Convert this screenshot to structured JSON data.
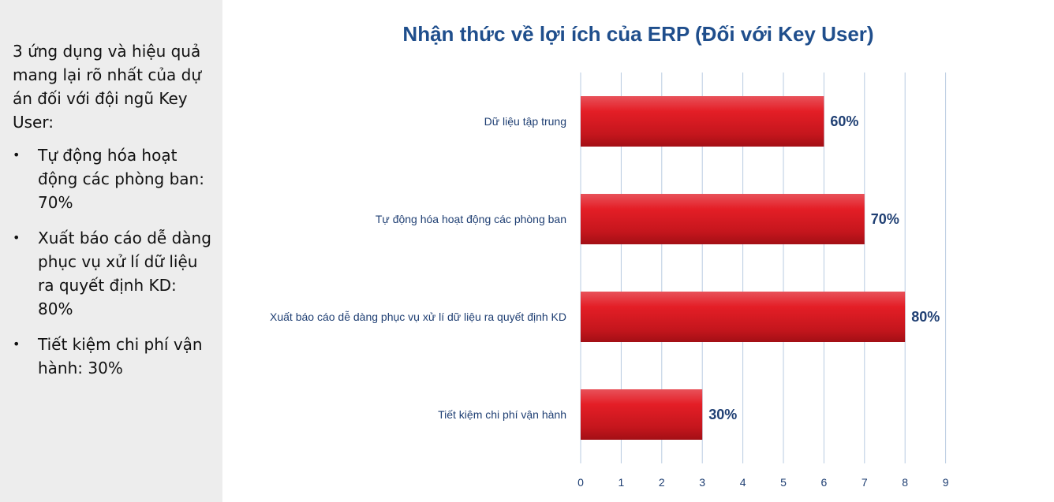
{
  "side_panel": {
    "intro": "3 ứng dụng và hiệu quả mang lại rõ nhất của dự án đối với đội ngũ Key User:",
    "bullets": [
      "Tự động hóa hoạt động các phòng ban: 70%",
      "Xuất báo cáo dễ dàng phục vụ xử lí dữ liệu ra quyết định KD: 80%",
      "Tiết kiệm chi phí vận hành: 30%"
    ]
  },
  "chart_data": {
    "type": "bar",
    "orientation": "horizontal",
    "title": "Nhận thức về lợi ích của ERP (Đối với Key User)",
    "categories": [
      "Dữ liệu tập trung",
      "Tự động hóa hoạt động các phòng ban",
      "Xuất báo cáo dễ dàng phục vụ xử lí dữ liệu ra quyết định KD",
      "Tiết kiệm chi phí vận hành"
    ],
    "values": [
      6,
      7,
      8,
      3
    ],
    "data_labels": [
      "60%",
      "70%",
      "80%",
      "30%"
    ],
    "xlim": [
      0,
      9
    ],
    "xticks": [
      "0",
      "1",
      "2",
      "3",
      "4",
      "5",
      "6",
      "7",
      "8",
      "9"
    ],
    "grid": "vertical",
    "bar_color": "#d71920",
    "text_color": "#1f4e8c"
  }
}
